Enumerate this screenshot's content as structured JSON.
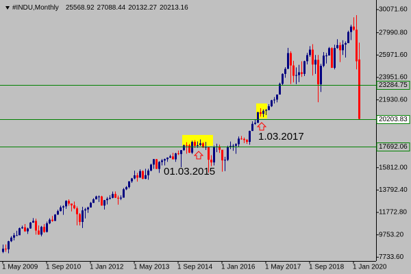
{
  "chart_data": {
    "type": "candlestick",
    "title": "#INDU,Monthly",
    "x": [
      "2009-05",
      "2009-06",
      "2009-07",
      "2009-08",
      "2009-09",
      "2009-10",
      "2009-11",
      "2009-12",
      "2010-01",
      "2010-02",
      "2010-03",
      "2010-04",
      "2010-05",
      "2010-06",
      "2010-07",
      "2010-08",
      "2010-09",
      "2010-10",
      "2010-11",
      "2010-12",
      "2011-01",
      "2011-02",
      "2011-03",
      "2011-04",
      "2011-05",
      "2011-06",
      "2011-07",
      "2011-08",
      "2011-09",
      "2011-10",
      "2011-11",
      "2011-12",
      "2012-01",
      "2012-02",
      "2012-03",
      "2012-04",
      "2012-05",
      "2012-06",
      "2012-07",
      "2012-08",
      "2012-09",
      "2012-10",
      "2012-11",
      "2012-12",
      "2013-01",
      "2013-02",
      "2013-03",
      "2013-04",
      "2013-05",
      "2013-06",
      "2013-07",
      "2013-08",
      "2013-09",
      "2013-10",
      "2013-11",
      "2013-12",
      "2014-01",
      "2014-02",
      "2014-03",
      "2014-04",
      "2014-05",
      "2014-06",
      "2014-07",
      "2014-08",
      "2014-09",
      "2014-10",
      "2014-11",
      "2014-12",
      "2015-01",
      "2015-02",
      "2015-03",
      "2015-04",
      "2015-05",
      "2015-06",
      "2015-07",
      "2015-08",
      "2015-09",
      "2015-10",
      "2015-11",
      "2015-12",
      "2016-01",
      "2016-02",
      "2016-03",
      "2016-04",
      "2016-05",
      "2016-06",
      "2016-07",
      "2016-08",
      "2016-09",
      "2016-10",
      "2016-11",
      "2016-12",
      "2017-01",
      "2017-02",
      "2017-03",
      "2017-04",
      "2017-05",
      "2017-06",
      "2017-07",
      "2017-08",
      "2017-09",
      "2017-10",
      "2017-11",
      "2017-12",
      "2018-01",
      "2018-02",
      "2018-03",
      "2018-04",
      "2018-05",
      "2018-06",
      "2018-07",
      "2018-08",
      "2018-09",
      "2018-10",
      "2018-11",
      "2018-12",
      "2019-01",
      "2019-02",
      "2019-03",
      "2019-04",
      "2019-05",
      "2019-06",
      "2019-07",
      "2019-08",
      "2019-09",
      "2019-10",
      "2019-11",
      "2019-12",
      "2020-01",
      "2020-02",
      "2020-03"
    ],
    "open": [
      8212,
      8500,
      8447,
      9172,
      9496,
      9712,
      9713,
      10345,
      10428,
      10067,
      10325,
      10857,
      11009,
      10137,
      9774,
      10466,
      10015,
      10788,
      11118,
      11006,
      11578,
      11892,
      12226,
      12320,
      12811,
      12570,
      12414,
      12143,
      11614,
      10913,
      11955,
      12046,
      12218,
      12633,
      12952,
      13212,
      13214,
      12393,
      12880,
      13009,
      13091,
      13437,
      13096,
      13026,
      13104,
      13861,
      14054,
      14579,
      14840,
      15116,
      14910,
      15500,
      14810,
      15130,
      15546,
      16086,
      16577,
      15699,
      16322,
      16458,
      16581,
      16717,
      16827,
      16563,
      17098,
      17043,
      17391,
      17828,
      17823,
      17165,
      18133,
      17776,
      17841,
      18011,
      17620,
      17690,
      16528,
      16285,
      17664,
      17720,
      17425,
      16466,
      16517,
      17685,
      17774,
      17787,
      17930,
      18432,
      18401,
      18308,
      18142,
      19124,
      19763,
      19864,
      20812,
      20663,
      20941,
      21009,
      21350,
      21891,
      21948,
      22405,
      23377,
      24272,
      24719,
      26149,
      25029,
      24103,
      24163,
      24416,
      24271,
      25415,
      25965,
      26458,
      25116,
      25538,
      23327,
      24999,
      25916,
      25929,
      26593,
      24815,
      26600,
      26864,
      26403,
      26917,
      27046,
      28051,
      28538,
      28256,
      25568.92
    ],
    "high": [
      8877,
      8880,
      9215,
      9630,
      9918,
      10119,
      10406,
      10580,
      10729,
      10400,
      10908,
      11258,
      11205,
      10595,
      10559,
      10720,
      10948,
      11246,
      11452,
      11625,
      12020,
      12391,
      12419,
      12876,
      12950,
      12569,
      12753,
      12304,
      11717,
      12284,
      12179,
      12294,
      12720,
      13055,
      13289,
      13297,
      13280,
      12898,
      13159,
      13330,
      13653,
      13662,
      13290,
      13305,
      13969,
      14149,
      14585,
      14888,
      15542,
      15340,
      15658,
      15569,
      15710,
      15710,
      16174,
      16588,
      16588,
      16398,
      16588,
      16631,
      16736,
      16978,
      17152,
      17153,
      17350,
      17395,
      17895,
      18103,
      17951,
      18244,
      18289,
      18175,
      18351,
      18116,
      18137,
      17712,
      16933,
      17799,
      17977,
      17888,
      17405,
      16795,
      17790,
      18168,
      17934,
      18017,
      18623,
      18668,
      18534,
      18400,
      19152,
      19987,
      20125,
      20851,
      21169,
      21070,
      21112,
      21535,
      21930,
      22179,
      22420,
      23485,
      24327,
      24876,
      26617,
      26306,
      25449,
      24858,
      25087,
      25403,
      25462,
      26168,
      26770,
      26952,
      25981,
      25980,
      25180,
      26242,
      26156,
      26696,
      26667,
      26908,
      27398,
      27108,
      27306,
      27197,
      28175,
      28701,
      29374,
      29568,
      27088.44
    ],
    "low": [
      8100,
      8220,
      8087,
      9100,
      9250,
      9678,
      9765,
      10290,
      10026,
      9835,
      10300,
      10840,
      9774,
      9758,
      9614,
      9936,
      9960,
      10711,
      10929,
      11000,
      11550,
      11860,
      11555,
      12093,
      12381,
      11862,
      12061,
      10604,
      10597,
      10362,
      11231,
      11736,
      12218,
      12627,
      12952,
      12710,
      12381,
      12035,
      12492,
      12930,
      13042,
      13070,
      12471,
      12883,
      13104,
      13784,
      13937,
      14434,
      14770,
      14551,
      14910,
      14760,
      14777,
      14719,
      15478,
      15703,
      15699,
      15340,
      16015,
      16015,
      16334,
      16674,
      16563,
      16333,
      16945,
      15855,
      17334,
      17067,
      17136,
      17037,
      17585,
      17593,
      17771,
      17596,
      17399,
      15370,
      15942,
      16013,
      17210,
      17138,
      15450,
      15503,
      16408,
      17485,
      17331,
      17063,
      17713,
      18338,
      18028,
      17960,
      17884,
      19124,
      19677,
      19831,
      20412,
      20379,
      20554,
      20992,
      21279,
      21600,
      21709,
      22416,
      23242,
      23921,
      24741,
      23360,
      23509,
      23345,
      23532,
      23997,
      24076,
      25124,
      25804,
      24123,
      24269,
      21713,
      22638,
      24870,
      25208,
      25999,
      24815,
      24680,
      26534,
      25339,
      25978,
      25743,
      27046,
      27325,
      28170,
      24681,
      20132.27
    ],
    "close": [
      8500,
      8447,
      9172,
      9496,
      9712,
      9713,
      10345,
      10428,
      10067,
      10325,
      10857,
      11009,
      10137,
      9774,
      10466,
      10015,
      10788,
      11118,
      11006,
      11578,
      11892,
      12226,
      12320,
      12811,
      12570,
      12414,
      12143,
      11614,
      10913,
      11955,
      12046,
      12218,
      12633,
      12952,
      13212,
      13214,
      12393,
      12880,
      13009,
      13091,
      13437,
      13096,
      13026,
      13104,
      13861,
      14054,
      14579,
      14840,
      15116,
      14910,
      15500,
      14810,
      15130,
      15546,
      16086,
      16577,
      15699,
      16322,
      16458,
      16581,
      16717,
      16827,
      16563,
      17098,
      17043,
      17391,
      17828,
      17823,
      17165,
      18133,
      17776,
      17841,
      18011,
      17620,
      17690,
      16528,
      16285,
      17664,
      17720,
      17425,
      16466,
      16517,
      17685,
      17774,
      17787,
      17930,
      18432,
      18401,
      18308,
      18142,
      19124,
      19763,
      19864,
      20812,
      20663,
      20941,
      21009,
      21350,
      21891,
      21948,
      22405,
      23377,
      24272,
      24719,
      26149,
      25029,
      24103,
      24163,
      24416,
      24271,
      25415,
      25965,
      26458,
      25116,
      25538,
      23327,
      24999,
      25916,
      25929,
      26593,
      24815,
      26600,
      26864,
      26403,
      26917,
      27046,
      28051,
      28538,
      28256,
      25409,
      20213.16
    ],
    "up_color": "#00007f",
    "down_color": "#ff0000",
    "ylim": [
      7391,
      30937
    ],
    "yticks": [
      {
        "value": 30071.6,
        "label": "30071.60"
      },
      {
        "value": 27990.8,
        "label": "27990.80"
      },
      {
        "value": 25971.6,
        "label": "25971.60"
      },
      {
        "value": 23951.6,
        "label": "23951.60"
      },
      {
        "value": 21930.6,
        "label": "21930.60"
      },
      {
        "value": 15812,
        "label": "15812.00"
      },
      {
        "value": 13792.4,
        "label": "13792.40"
      },
      {
        "value": 11772.8,
        "label": "11772.80"
      },
      {
        "value": 9753.2,
        "label": "9753.20"
      },
      {
        "value": 7733.6,
        "label": "7733.60"
      }
    ],
    "xticks": [
      {
        "value": "2009-05",
        "label": "1 May 2009"
      },
      {
        "value": "2010-09",
        "label": "1 Sep 2010"
      },
      {
        "value": "2012-01",
        "label": "1 Jan 2012"
      },
      {
        "value": "2013-05",
        "label": "1 May 2013"
      },
      {
        "value": "2014-09",
        "label": "1 Sep 2014"
      },
      {
        "value": "2016-01",
        "label": "1 Jan 2016"
      },
      {
        "value": "2017-05",
        "label": "1 May 2017"
      },
      {
        "value": "2018-09",
        "label": "1 Sep 2018"
      },
      {
        "value": "2020-01",
        "label": "1 Jan 2020"
      }
    ],
    "levels": [
      23284.75,
      20203.83,
      17692.06
    ],
    "level_color": "#008000",
    "annotations": [
      "01.03.2015",
      "1.03.2017"
    ]
  }
}
